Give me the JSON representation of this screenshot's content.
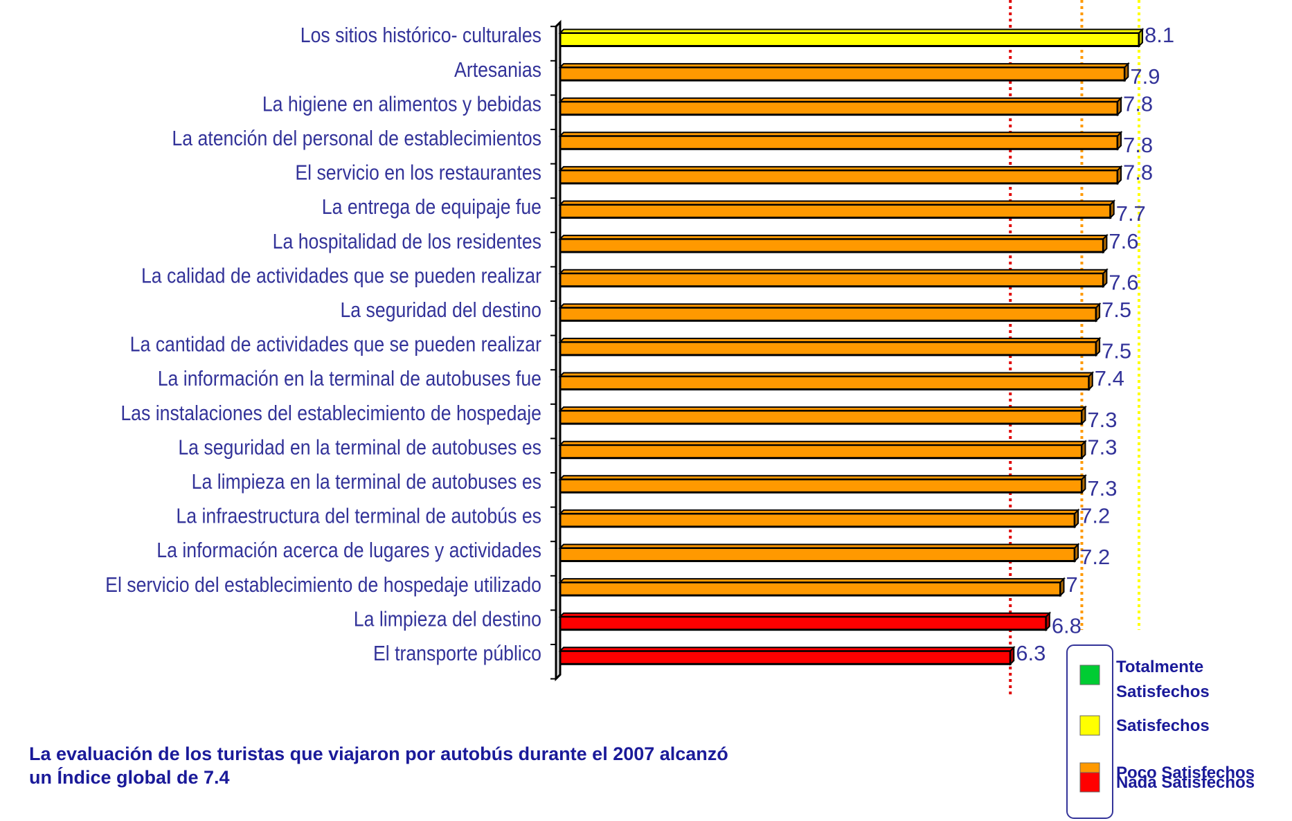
{
  "chart_data": {
    "type": "hbar",
    "categories": [
      "Los sitios histórico- culturales",
      "Artesanias",
      "La higiene en alimentos y bebidas",
      "La atención del personal de establecimientos",
      "El servicio en los restaurantes",
      "La entrega de equipaje fue",
      "La hospitalidad de los residentes",
      "La calidad de actividades que se pueden realizar",
      "La seguridad del destino",
      "La cantidad de actividades que se pueden realizar",
      "La información en la terminal de autobuses fue",
      "Las instalaciones del establecimiento de hospedaje",
      "La seguridad en la terminal de autobuses es",
      "La limpieza en la terminal de autobuses es",
      "La infraestructura del terminal de autobús es",
      "La información acerca de lugares y actividades",
      "El servicio del establecimiento de hospedaje utilizado",
      "La limpieza del destino",
      "El transporte público"
    ],
    "values": [
      8.1,
      7.9,
      7.8,
      7.8,
      7.8,
      7.7,
      7.6,
      7.6,
      7.5,
      7.5,
      7.4,
      7.3,
      7.3,
      7.3,
      7.2,
      7.2,
      7,
      6.8,
      6.3
    ],
    "colors": [
      "#ffff00",
      "#ff9900",
      "#ff9900",
      "#ff9900",
      "#ff9900",
      "#ff9900",
      "#ff9900",
      "#ff9900",
      "#ff9900",
      "#ff9900",
      "#ff9900",
      "#ff9900",
      "#ff9900",
      "#ff9900",
      "#ff9900",
      "#ff9900",
      "#ff9900",
      "#ff0000",
      "#ff0000"
    ],
    "xlim": [
      0,
      8.1
    ],
    "reference_lines": [
      {
        "value": 6.3,
        "color": "#e00000"
      },
      {
        "value": 7.3,
        "color": "#ff9900"
      },
      {
        "value": 8.1,
        "color": "#ffff00"
      }
    ],
    "legend": [
      {
        "name": "Totalmente Satisfechos",
        "color": "#00cc33"
      },
      {
        "name": "Satisfechos",
        "color": "#ffff00"
      },
      {
        "name": "Poco Satisfechos",
        "color": "#ff9900"
      },
      {
        "name": "Nada Satisfechos",
        "color": "#ff0000"
      }
    ],
    "note": [
      "La evaluación de los turistas que viajaron por autobús durante el 2007  alcanzó",
      "un Índice global de 7.4"
    ]
  }
}
